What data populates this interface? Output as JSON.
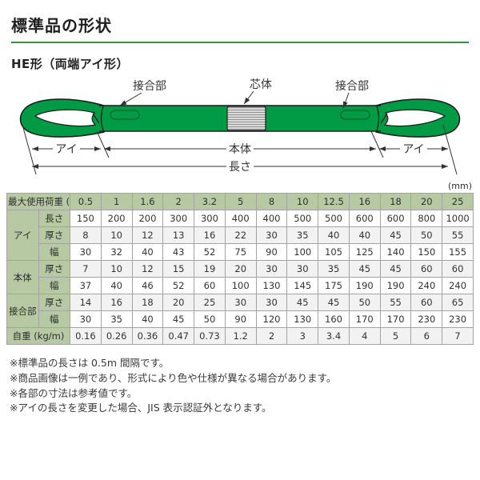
{
  "page": {
    "title": "標準品の形状",
    "subtitle": "HE形（両端アイ形）",
    "unit_label": "(mm)"
  },
  "diagram": {
    "labels": {
      "joint_left": "接合部",
      "core": "芯体",
      "joint_right": "接合部",
      "eye_left": "アイ",
      "body": "本体",
      "eye_right": "アイ",
      "length": "長さ"
    },
    "colors": {
      "webbing_green": "#009b44",
      "outline": "#1a1a1a",
      "core_fill": "#dcdcdc"
    }
  },
  "table": {
    "header_label": "最大使用荷重 (t)",
    "loads": [
      "0.5",
      "1",
      "1.6",
      "2",
      "3.2",
      "5",
      "8",
      "10",
      "12.5",
      "16",
      "18",
      "20",
      "25"
    ],
    "groups": [
      {
        "label": "アイ",
        "rows": [
          {
            "sub": "長さ",
            "values": [
              "150",
              "200",
              "200",
              "300",
              "300",
              "400",
              "400",
              "500",
              "500",
              "600",
              "600",
              "800",
              "1000"
            ]
          },
          {
            "sub": "厚さ",
            "values": [
              "8",
              "10",
              "12",
              "13",
              "16",
              "22",
              "30",
              "35",
              "40",
              "40",
              "45",
              "50",
              "55"
            ]
          },
          {
            "sub": "幅",
            "values": [
              "30",
              "32",
              "40",
              "43",
              "52",
              "75",
              "90",
              "100",
              "105",
              "125",
              "140",
              "150",
              "155"
            ]
          }
        ]
      },
      {
        "label": "本体",
        "rows": [
          {
            "sub": "厚さ",
            "values": [
              "7",
              "10",
              "12",
              "15",
              "19",
              "20",
              "30",
              "30",
              "35",
              "45",
              "45",
              "60",
              "60"
            ]
          },
          {
            "sub": "幅",
            "values": [
              "37",
              "40",
              "46",
              "52",
              "60",
              "100",
              "130",
              "145",
              "175",
              "190",
              "190",
              "240",
              "240"
            ]
          }
        ]
      },
      {
        "label": "接合部",
        "rows": [
          {
            "sub": "厚さ",
            "values": [
              "14",
              "16",
              "18",
              "20",
              "25",
              "30",
              "30",
              "45",
              "45",
              "50",
              "55",
              "60",
              "65"
            ]
          },
          {
            "sub": "幅",
            "values": [
              "30",
              "35",
              "40",
              "45",
              "50",
              "90",
              "120",
              "130",
              "160",
              "170",
              "170",
              "230",
              "230"
            ]
          }
        ]
      }
    ],
    "weight_row": {
      "label": "自重 (kg/m)",
      "values": [
        "0.16",
        "0.26",
        "0.36",
        "0.47",
        "0.73",
        "1.2",
        "2",
        "3",
        "3.4",
        "4",
        "5",
        "6",
        "7"
      ]
    },
    "colors": {
      "header_bg": "#b7c9a2",
      "border": "#a3a3a3",
      "alt_row": "#f2f2f2",
      "accent_line": "#35953f"
    }
  },
  "footnotes": [
    "※標準品の長さは 0.5m 間隔です。",
    "※商品画像は一例であり、形式により色や仕様が異なる場合があります。",
    "※各部の寸法は参考値です。",
    "※アイの長さを変更した場合、JIS 表示認証外となります。"
  ]
}
